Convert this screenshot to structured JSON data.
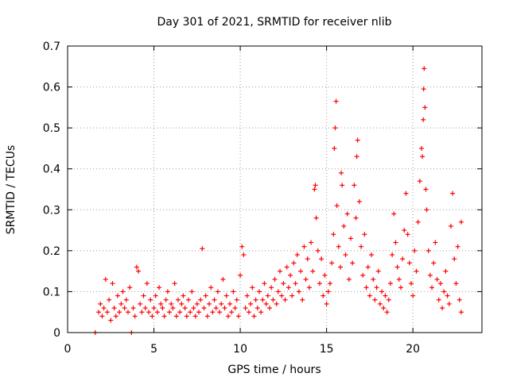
{
  "chart_data": {
    "type": "scatter",
    "title": "Day 301 of 2021, SRMTID for receiver nlib",
    "xlabel": "GPS time / hours",
    "ylabel": "SRMTID / TECUs",
    "xlim": [
      0,
      24
    ],
    "ylim": [
      0,
      0.7
    ],
    "x_ticks": [
      0,
      5,
      10,
      15,
      20
    ],
    "y_ticks": [
      0,
      0.1,
      0.2,
      0.3,
      0.4,
      0.5,
      0.6,
      0.7
    ],
    "x_tick_labels": [
      "0",
      "5",
      "10",
      "15",
      "20"
    ],
    "y_tick_labels": [
      "0",
      "0.1",
      "0.2",
      "0.3",
      "0.4",
      "0.5",
      "0.6",
      "0.7"
    ],
    "grid": true,
    "marker": "+",
    "color": "#ff0000",
    "series": [
      {
        "name": "SRMTID",
        "points": [
          [
            1.6,
            0.0
          ],
          [
            3.7,
            0.0
          ],
          [
            1.8,
            0.05
          ],
          [
            1.9,
            0.07
          ],
          [
            2.0,
            0.04
          ],
          [
            2.1,
            0.06
          ],
          [
            2.2,
            0.13
          ],
          [
            2.3,
            0.05
          ],
          [
            2.4,
            0.08
          ],
          [
            2.5,
            0.03
          ],
          [
            2.6,
            0.12
          ],
          [
            2.7,
            0.06
          ],
          [
            2.8,
            0.04
          ],
          [
            2.9,
            0.09
          ],
          [
            3.0,
            0.05
          ],
          [
            3.1,
            0.07
          ],
          [
            3.2,
            0.1
          ],
          [
            3.3,
            0.06
          ],
          [
            3.4,
            0.08
          ],
          [
            3.5,
            0.05
          ],
          [
            3.6,
            0.11
          ],
          [
            3.8,
            0.06
          ],
          [
            3.9,
            0.04
          ],
          [
            4.0,
            0.16
          ],
          [
            4.1,
            0.15
          ],
          [
            4.2,
            0.07
          ],
          [
            4.3,
            0.05
          ],
          [
            4.4,
            0.09
          ],
          [
            4.5,
            0.06
          ],
          [
            4.6,
            0.12
          ],
          [
            4.7,
            0.05
          ],
          [
            4.8,
            0.08
          ],
          [
            4.9,
            0.04
          ],
          [
            5.0,
            0.06
          ],
          [
            5.1,
            0.09
          ],
          [
            5.2,
            0.05
          ],
          [
            5.3,
            0.11
          ],
          [
            5.4,
            0.07
          ],
          [
            5.5,
            0.06
          ],
          [
            5.6,
            0.04
          ],
          [
            5.7,
            0.08
          ],
          [
            5.8,
            0.1
          ],
          [
            5.9,
            0.05
          ],
          [
            6.0,
            0.07
          ],
          [
            6.1,
            0.06
          ],
          [
            6.2,
            0.12
          ],
          [
            6.3,
            0.04
          ],
          [
            6.4,
            0.08
          ],
          [
            6.5,
            0.05
          ],
          [
            6.6,
            0.07
          ],
          [
            6.7,
            0.09
          ],
          [
            6.8,
            0.06
          ],
          [
            6.9,
            0.04
          ],
          [
            7.0,
            0.08
          ],
          [
            7.1,
            0.05
          ],
          [
            7.2,
            0.1
          ],
          [
            7.3,
            0.06
          ],
          [
            7.4,
            0.04
          ],
          [
            7.5,
            0.07
          ],
          [
            7.6,
            0.05
          ],
          [
            7.7,
            0.08
          ],
          [
            7.8,
            0.205
          ],
          [
            7.9,
            0.06
          ],
          [
            8.0,
            0.09
          ],
          [
            8.1,
            0.04
          ],
          [
            8.2,
            0.07
          ],
          [
            8.3,
            0.11
          ],
          [
            8.4,
            0.05
          ],
          [
            8.5,
            0.08
          ],
          [
            8.6,
            0.06
          ],
          [
            8.7,
            0.1
          ],
          [
            8.8,
            0.05
          ],
          [
            8.9,
            0.07
          ],
          [
            9.0,
            0.13
          ],
          [
            9.1,
            0.06
          ],
          [
            9.2,
            0.09
          ],
          [
            9.3,
            0.04
          ],
          [
            9.4,
            0.07
          ],
          [
            9.5,
            0.05
          ],
          [
            9.6,
            0.1
          ],
          [
            9.7,
            0.06
          ],
          [
            9.8,
            0.08
          ],
          [
            9.9,
            0.04
          ],
          [
            10.0,
            0.14
          ],
          [
            10.1,
            0.21
          ],
          [
            10.2,
            0.19
          ],
          [
            10.3,
            0.06
          ],
          [
            10.4,
            0.09
          ],
          [
            10.5,
            0.05
          ],
          [
            10.6,
            0.07
          ],
          [
            10.7,
            0.11
          ],
          [
            10.8,
            0.04
          ],
          [
            10.9,
            0.08
          ],
          [
            11.0,
            0.06
          ],
          [
            11.1,
            0.1
          ],
          [
            11.2,
            0.05
          ],
          [
            11.3,
            0.08
          ],
          [
            11.4,
            0.12
          ],
          [
            11.5,
            0.07
          ],
          [
            11.6,
            0.09
          ],
          [
            11.7,
            0.06
          ],
          [
            11.8,
            0.11
          ],
          [
            11.9,
            0.08
          ],
          [
            12.0,
            0.13
          ],
          [
            12.1,
            0.07
          ],
          [
            12.2,
            0.1
          ],
          [
            12.3,
            0.15
          ],
          [
            12.4,
            0.09
          ],
          [
            12.5,
            0.12
          ],
          [
            12.6,
            0.08
          ],
          [
            12.7,
            0.16
          ],
          [
            12.8,
            0.11
          ],
          [
            12.9,
            0.14
          ],
          [
            13.0,
            0.09
          ],
          [
            13.1,
            0.17
          ],
          [
            13.2,
            0.12
          ],
          [
            13.3,
            0.19
          ],
          [
            13.4,
            0.1
          ],
          [
            13.5,
            0.15
          ],
          [
            13.6,
            0.08
          ],
          [
            13.7,
            0.21
          ],
          [
            13.8,
            0.13
          ],
          [
            13.9,
            0.18
          ],
          [
            14.0,
            0.11
          ],
          [
            14.1,
            0.22
          ],
          [
            14.2,
            0.15
          ],
          [
            14.3,
            0.35
          ],
          [
            14.35,
            0.36
          ],
          [
            14.4,
            0.28
          ],
          [
            14.5,
            0.2
          ],
          [
            14.6,
            0.12
          ],
          [
            14.7,
            0.18
          ],
          [
            14.8,
            0.09
          ],
          [
            14.9,
            0.14
          ],
          [
            15.0,
            0.07
          ],
          [
            15.1,
            0.1
          ],
          [
            15.2,
            0.12
          ],
          [
            15.3,
            0.17
          ],
          [
            15.4,
            0.24
          ],
          [
            15.45,
            0.45
          ],
          [
            15.5,
            0.5
          ],
          [
            15.55,
            0.565
          ],
          [
            15.6,
            0.31
          ],
          [
            15.7,
            0.21
          ],
          [
            15.8,
            0.16
          ],
          [
            15.85,
            0.39
          ],
          [
            15.9,
            0.36
          ],
          [
            16.0,
            0.26
          ],
          [
            16.1,
            0.19
          ],
          [
            16.2,
            0.29
          ],
          [
            16.3,
            0.13
          ],
          [
            16.4,
            0.23
          ],
          [
            16.5,
            0.17
          ],
          [
            16.6,
            0.36
          ],
          [
            16.7,
            0.28
          ],
          [
            16.75,
            0.43
          ],
          [
            16.8,
            0.47
          ],
          [
            16.9,
            0.32
          ],
          [
            17.0,
            0.21
          ],
          [
            17.1,
            0.14
          ],
          [
            17.2,
            0.24
          ],
          [
            17.3,
            0.11
          ],
          [
            17.4,
            0.16
          ],
          [
            17.5,
            0.09
          ],
          [
            17.6,
            0.19
          ],
          [
            17.7,
            0.13
          ],
          [
            17.8,
            0.08
          ],
          [
            17.9,
            0.11
          ],
          [
            18.0,
            0.15
          ],
          [
            18.1,
            0.07
          ],
          [
            18.2,
            0.1
          ],
          [
            18.3,
            0.06
          ],
          [
            18.4,
            0.09
          ],
          [
            18.5,
            0.05
          ],
          [
            18.6,
            0.08
          ],
          [
            18.7,
            0.12
          ],
          [
            18.8,
            0.19
          ],
          [
            18.9,
            0.29
          ],
          [
            19.0,
            0.22
          ],
          [
            19.1,
            0.16
          ],
          [
            19.2,
            0.13
          ],
          [
            19.3,
            0.11
          ],
          [
            19.4,
            0.18
          ],
          [
            19.5,
            0.25
          ],
          [
            19.6,
            0.34
          ],
          [
            19.7,
            0.24
          ],
          [
            19.8,
            0.17
          ],
          [
            19.9,
            0.12
          ],
          [
            20.0,
            0.09
          ],
          [
            20.1,
            0.2
          ],
          [
            20.2,
            0.15
          ],
          [
            20.3,
            0.27
          ],
          [
            20.4,
            0.37
          ],
          [
            20.5,
            0.45
          ],
          [
            20.55,
            0.43
          ],
          [
            20.6,
            0.52
          ],
          [
            20.62,
            0.595
          ],
          [
            20.65,
            0.645
          ],
          [
            20.7,
            0.55
          ],
          [
            20.75,
            0.35
          ],
          [
            20.8,
            0.3
          ],
          [
            20.9,
            0.2
          ],
          [
            21.0,
            0.14
          ],
          [
            21.1,
            0.11
          ],
          [
            21.2,
            0.17
          ],
          [
            21.3,
            0.22
          ],
          [
            21.4,
            0.13
          ],
          [
            21.5,
            0.08
          ],
          [
            21.6,
            0.12
          ],
          [
            21.7,
            0.06
          ],
          [
            21.8,
            0.1
          ],
          [
            21.9,
            0.15
          ],
          [
            22.0,
            0.09
          ],
          [
            22.1,
            0.07
          ],
          [
            22.2,
            0.26
          ],
          [
            22.3,
            0.34
          ],
          [
            22.4,
            0.18
          ],
          [
            22.5,
            0.12
          ],
          [
            22.6,
            0.21
          ],
          [
            22.7,
            0.08
          ],
          [
            22.8,
            0.05
          ],
          [
            22.8,
            0.27
          ]
        ]
      }
    ]
  }
}
